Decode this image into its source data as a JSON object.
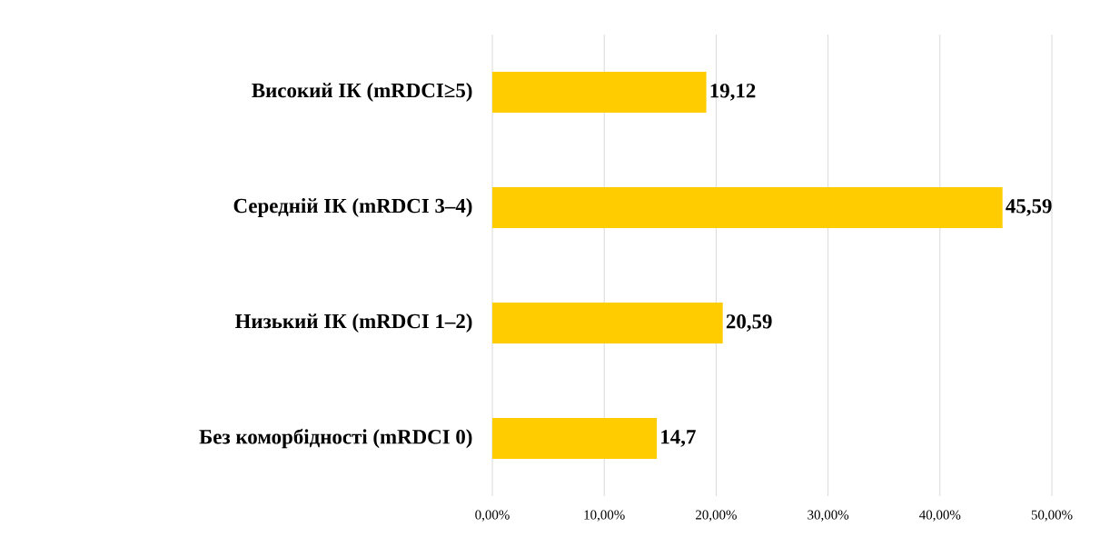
{
  "chart_data": {
    "type": "bar",
    "orientation": "horizontal",
    "categories": [
      "Високий ІК (mRDCI≥5)",
      "Середній ІК (mRDCI 3–4)",
      "Низький ІК (mRDCI 1–2)",
      "Без коморбідності (mRDCI 0)"
    ],
    "values": [
      19.12,
      45.59,
      20.59,
      14.7
    ],
    "value_labels": [
      "19,12",
      "45,59",
      "20,59",
      "14,7"
    ],
    "color": "#ffcc00",
    "xlim": [
      0,
      50
    ],
    "xticks": [
      {
        "value": 0,
        "label": "0,00%"
      },
      {
        "value": 10,
        "label": "10,00%"
      },
      {
        "value": 20,
        "label": "20,00%"
      },
      {
        "value": 30,
        "label": "30,00%"
      },
      {
        "value": 40,
        "label": "40,00%"
      },
      {
        "value": 50,
        "label": "50,00%"
      }
    ],
    "grid": "x"
  }
}
